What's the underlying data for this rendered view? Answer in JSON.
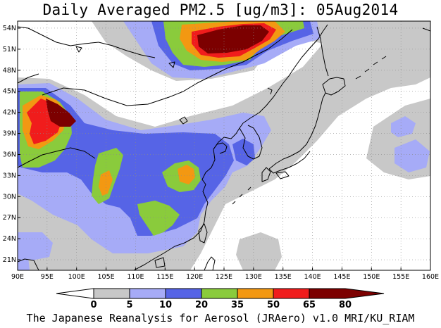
{
  "title": "Daily Averaged PM2.5 [ug/m3]: 05Aug2014",
  "footer": "The Japanese Reanalysis for Aerosol (JRAero) v1.0 MRI/KU_RIAM",
  "map": {
    "lon_range": [
      90,
      160
    ],
    "lat_range": [
      19.5,
      55
    ],
    "lon_labels": [
      "90E",
      "95E",
      "100E",
      "105E",
      "110E",
      "115E",
      "120E",
      "125E",
      "130E",
      "135E",
      "140E",
      "145E",
      "150E",
      "155E",
      "160E"
    ],
    "lat_labels": [
      "21N",
      "24N",
      "27N",
      "30N",
      "33N",
      "36N",
      "39N",
      "42N",
      "45N",
      "48N",
      "51N",
      "54N"
    ],
    "grid": "dotted"
  },
  "colorbar": {
    "labels": [
      "0",
      "5",
      "10",
      "20",
      "35",
      "50",
      "65",
      "80"
    ],
    "colors": {
      "c0": "#ffffff",
      "c5": "#c8c8c8",
      "c10": "#a6abf7",
      "c20": "#5664e6",
      "c35": "#8acb3c",
      "c50": "#f39812",
      "c65": "#f01c1c",
      "c80": "#7c0000"
    }
  }
}
